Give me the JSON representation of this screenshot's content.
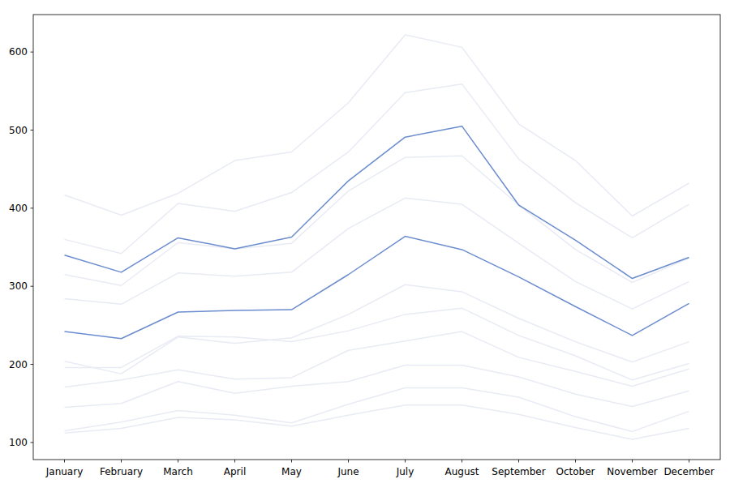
{
  "chart_data": {
    "type": "line",
    "categories": [
      "January",
      "February",
      "March",
      "April",
      "May",
      "June",
      "July",
      "August",
      "September",
      "October",
      "November",
      "December"
    ],
    "series": [
      {
        "color": "#e8ebf4",
        "values": [
          112,
          118,
          132,
          129,
          121,
          135,
          148,
          148,
          136,
          119,
          104,
          118
        ]
      },
      {
        "color": "#e8ebf4",
        "values": [
          115,
          126,
          141,
          135,
          125,
          149,
          170,
          170,
          158,
          133,
          114,
          140
        ]
      },
      {
        "color": "#e8ebf4",
        "values": [
          145,
          150,
          178,
          163,
          172,
          178,
          199,
          199,
          184,
          162,
          146,
          166
        ]
      },
      {
        "color": "#e8ebf4",
        "values": [
          171,
          180,
          193,
          181,
          183,
          218,
          230,
          242,
          209,
          191,
          172,
          194
        ]
      },
      {
        "color": "#e8ebf4",
        "values": [
          196,
          196,
          236,
          235,
          229,
          243,
          264,
          272,
          237,
          211,
          180,
          201
        ]
      },
      {
        "color": "#e8ebf4",
        "values": [
          204,
          188,
          235,
          227,
          234,
          264,
          302,
          293,
          259,
          229,
          203,
          229
        ]
      },
      {
        "color": "#e8ebf4",
        "values": [
          284,
          277,
          317,
          313,
          318,
          374,
          413,
          405,
          355,
          306,
          271,
          306
        ]
      },
      {
        "color": "#e8ebf4",
        "values": [
          315,
          301,
          356,
          348,
          355,
          422,
          465,
          467,
          404,
          347,
          305,
          336
        ]
      },
      {
        "color": "#e8ebf4",
        "values": [
          360,
          342,
          406,
          396,
          420,
          472,
          548,
          559,
          463,
          407,
          362,
          405
        ]
      },
      {
        "color": "#e8ebf4",
        "values": [
          417,
          391,
          419,
          461,
          472,
          535,
          622,
          606,
          508,
          461,
          390,
          432
        ]
      },
      {
        "color": "#6b8ccf",
        "values": [
          242,
          233,
          267,
          269,
          270,
          315,
          364,
          347,
          312,
          274,
          237,
          278
        ]
      },
      {
        "color": "#6b8ccf",
        "values": [
          340,
          318,
          362,
          348,
          363,
          435,
          491,
          505,
          404,
          359,
          310,
          337
        ]
      }
    ],
    "ylim": [
      78.1,
      647.9
    ],
    "yticks": [
      100,
      200,
      300,
      400,
      500,
      600
    ],
    "grid": false
  }
}
